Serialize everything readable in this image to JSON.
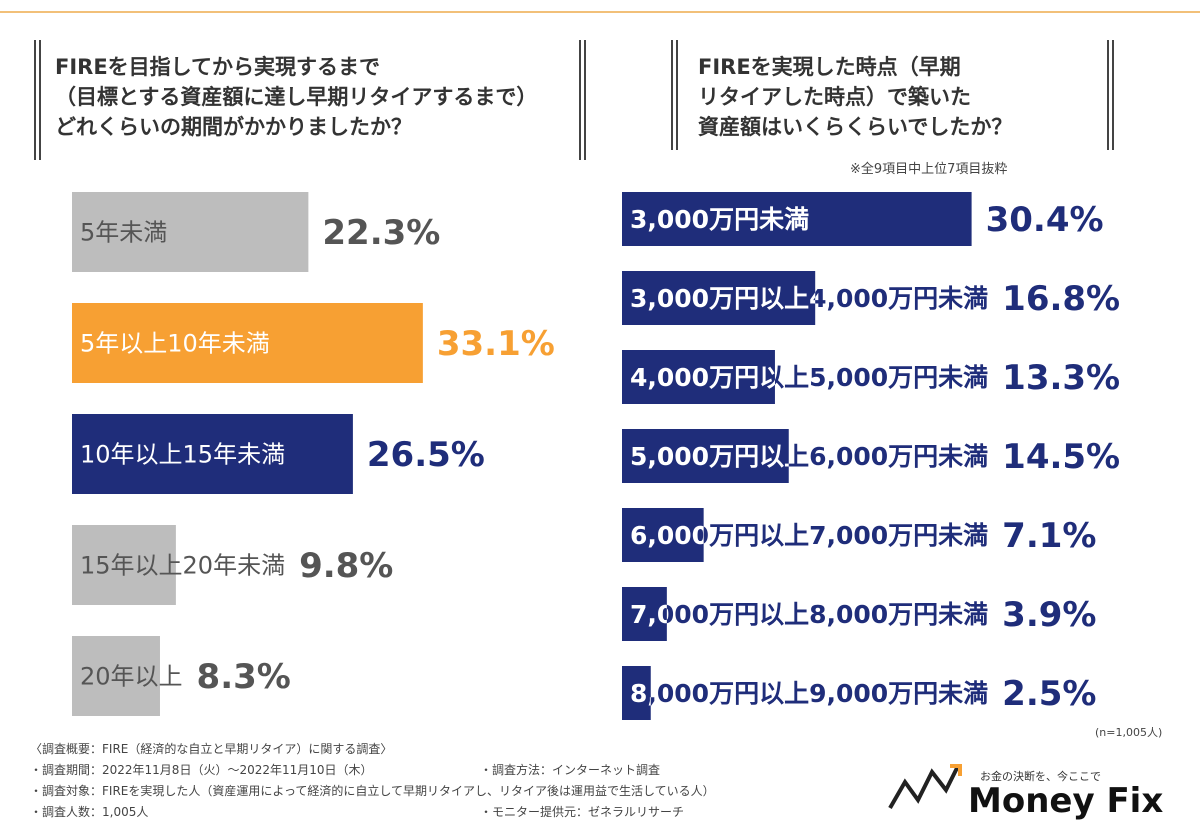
{
  "chart_data": [
    {
      "type": "hbar",
      "title": "FIREを目指してから実現するまで\n（目標とする資産額に達し早期リタイアするまで）\nどれくらいの期間がかかりましたか？",
      "categories": [
        "5年未満",
        "5年以上10年未満",
        "10年以上15年未満",
        "15年以上20年未満",
        "20年以上"
      ],
      "values": [
        22.3,
        33.1,
        26.5,
        9.8,
        8.3
      ],
      "value_labels": [
        "22.3%",
        "33.1%",
        "26.5%",
        "9.8%",
        "8.3%"
      ],
      "colors": [
        "#bdbdbd",
        "#f7a033",
        "#1f2d7a",
        "#bdbdbd",
        "#bdbdbd"
      ]
    },
    {
      "type": "hbar",
      "title": "FIREを実現した時点（早期\nリタイアした時点）で築いた\n資産額はいくらくらいでしたか？",
      "note": "※全9項目中上位7項目抜粋",
      "sample": "(n=1,005人)",
      "categories": [
        "3,000万円未満",
        "3,000万円以上4,000万円未満",
        "4,000万円以上5,000万円未満",
        "5,000万円以上6,000万円未満",
        "6,000万円以上7,000万円未満",
        "7,000万円以上8,000万円未満",
        "8,000万円以上9,000万円未満"
      ],
      "values": [
        30.4,
        16.8,
        13.3,
        14.5,
        7.1,
        3.9,
        2.5
      ],
      "value_labels": [
        "30.4%",
        "16.8%",
        "13.3%",
        "14.5%",
        "7.1%",
        "3.9%",
        "2.5%"
      ],
      "colors": [
        "#1f2d7a",
        "#1f2d7a",
        "#1f2d7a",
        "#1f2d7a",
        "#1f2d7a",
        "#1f2d7a",
        "#1f2d7a"
      ]
    }
  ],
  "footer": {
    "lines": [
      "〈調査概要：FIRE（経済的な自立と早期リタイア）に関する調査〉",
      "・調査期間：2022年11月8日（火）〜2022年11月10日（木）",
      "・調査方法：インターネット調査",
      "・調査対象：FIREを実現した人（資産運用によって経済的に自立して早期リタイアし、リタイア後は運用益で生活している人）",
      "・調査人数：1,005人",
      "・モニター提供元：ゼネラルリサーチ"
    ]
  },
  "logo": {
    "tagline": "お金の決断を、今ここで",
    "name": "Money Fix"
  }
}
